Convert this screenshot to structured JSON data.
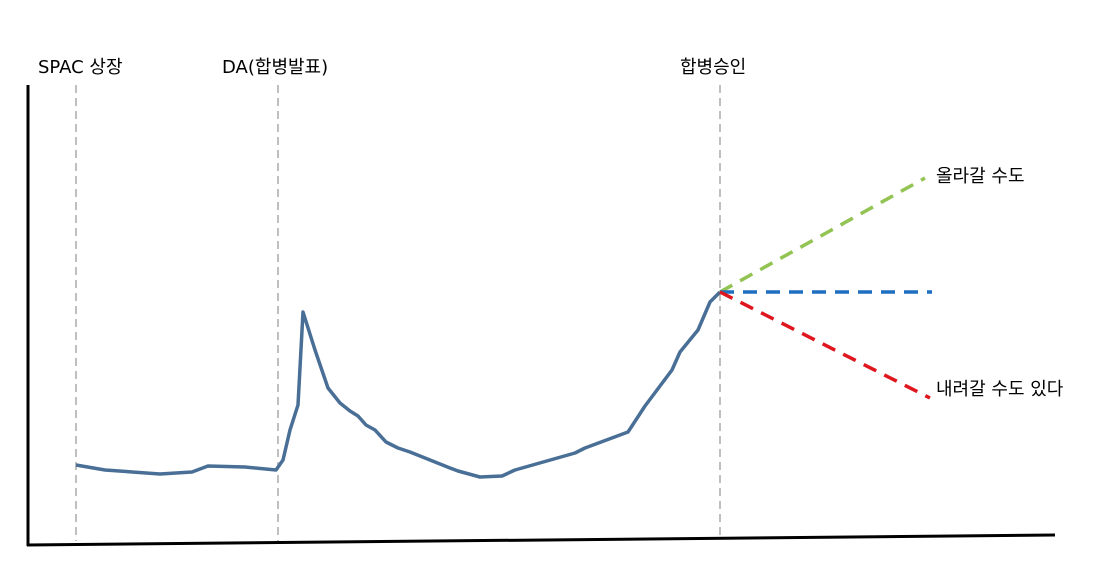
{
  "markers": [
    {
      "label": "SPAC 상장"
    },
    {
      "label": "DA(합병발표)"
    },
    {
      "label": "합병승인"
    }
  ],
  "scenarios": [
    {
      "label": "올라갈 수도"
    },
    {
      "label": "내려갈 수도 있다"
    }
  ]
}
